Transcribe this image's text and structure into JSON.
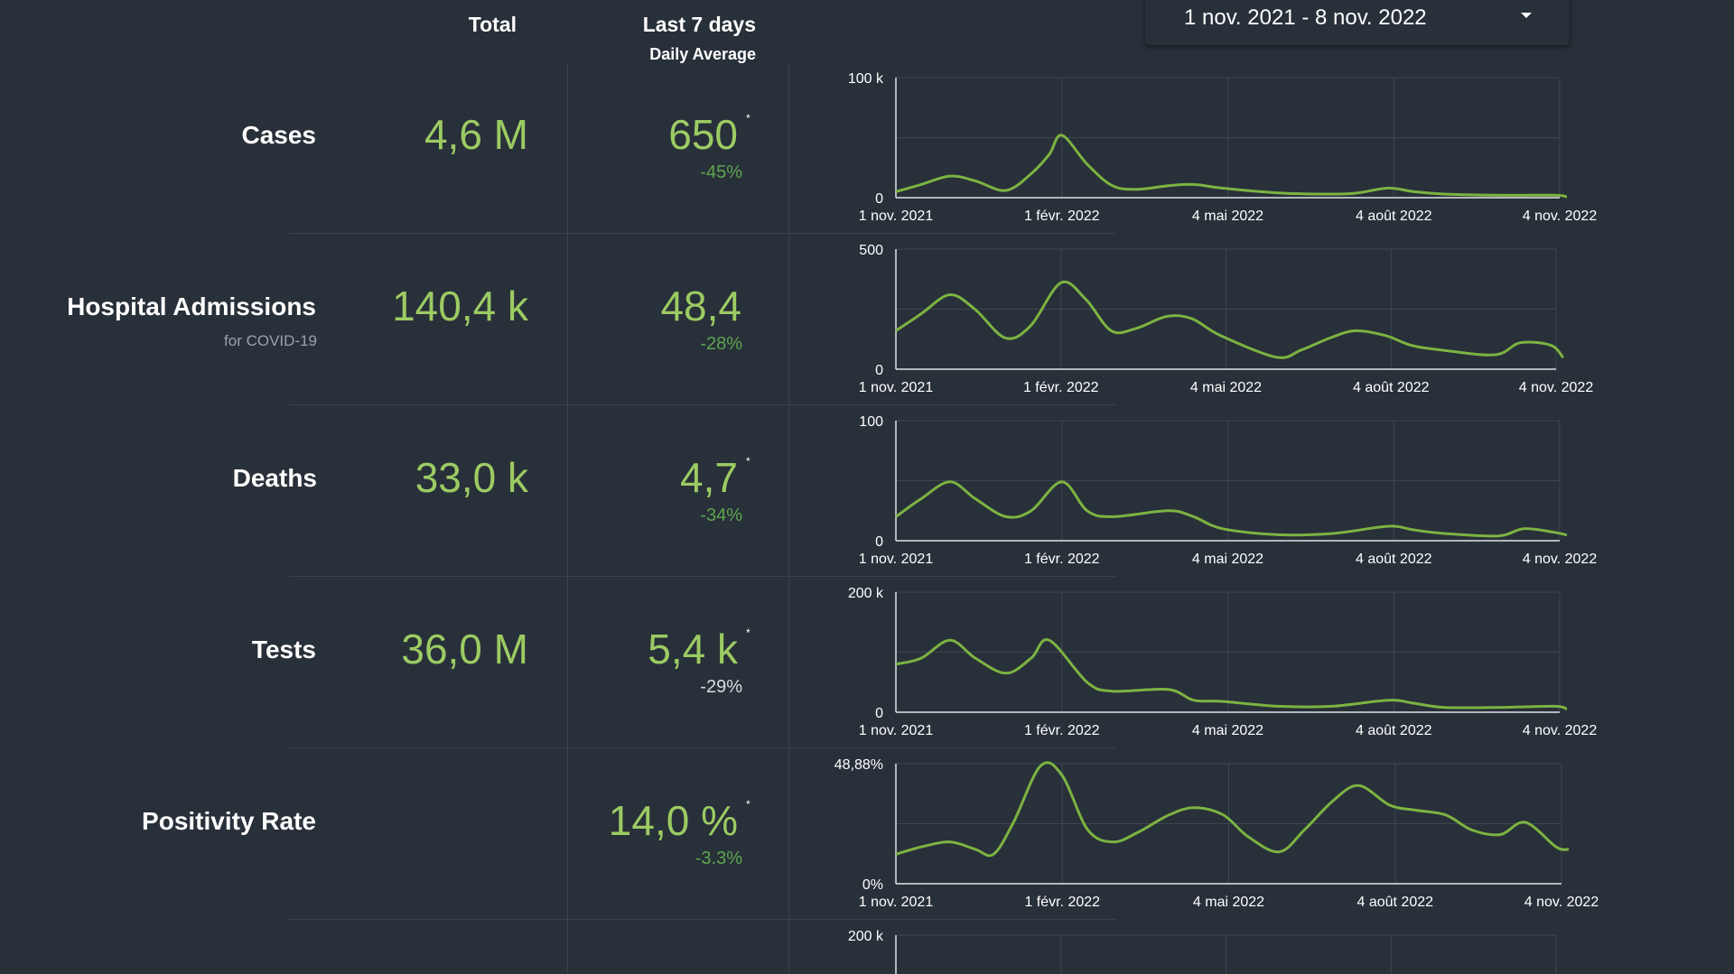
{
  "header": {
    "total_label": "Total",
    "last7_label": "Last 7 days",
    "daily_avg_label": "Daily Average"
  },
  "date_range": {
    "label": "1 nov. 2021 - 8 nov. 2022"
  },
  "colors": {
    "background": "#283039",
    "value_green": "#9ccb63",
    "change_green": "#5ea54f",
    "line": "#7cb342"
  },
  "metrics": [
    {
      "name": "Cases",
      "sub": "",
      "total": "4,6 M",
      "avg": "650",
      "star": "*",
      "change": "-45%"
    },
    {
      "name": "Hospital Admissions",
      "sub": "for COVID-19",
      "total": "140,4 k",
      "avg": "48,4",
      "star": "",
      "change": "-28%"
    },
    {
      "name": "Deaths",
      "sub": "",
      "total": "33,0 k",
      "avg": "4,7",
      "star": "*",
      "change": "-34%"
    },
    {
      "name": "Tests",
      "sub": "",
      "total": "36,0 M",
      "avg": "5,4 k",
      "star": "*",
      "change": "-29%"
    },
    {
      "name": "Positivity Rate",
      "sub": "",
      "total": "",
      "avg": "14,0 %",
      "star": "*",
      "change": "-3.3%"
    }
  ],
  "chart_data": [
    {
      "type": "line",
      "name": "Cases",
      "ylim": [
        0,
        100000
      ],
      "ytick_labels": [
        "0",
        "100 k"
      ],
      "xtick_labels": [
        "1 nov. 2021",
        "1 févr. 2022",
        "4 mai 2022",
        "4 août 2022",
        "4 nov. 2022"
      ],
      "x": [
        "2021-11-01",
        "2021-11-15",
        "2021-12-01",
        "2021-12-15",
        "2022-01-01",
        "2022-01-15",
        "2022-01-25",
        "2022-02-01",
        "2022-02-15",
        "2022-03-01",
        "2022-03-15",
        "2022-04-01",
        "2022-04-15",
        "2022-05-01",
        "2022-06-01",
        "2022-07-01",
        "2022-07-15",
        "2022-08-01",
        "2022-08-15",
        "2022-09-01",
        "2022-10-01",
        "2022-11-01",
        "2022-11-08"
      ],
      "y": [
        5000,
        11000,
        18000,
        14000,
        6000,
        20000,
        36000,
        52000,
        28000,
        10000,
        7000,
        10000,
        11000,
        8000,
        4000,
        3000,
        4000,
        8000,
        5000,
        3000,
        2000,
        2000,
        650
      ]
    },
    {
      "type": "line",
      "name": "Hospital Admissions",
      "ylim": [
        0,
        500
      ],
      "ytick_labels": [
        "0",
        "500"
      ],
      "xtick_labels": [
        "1 nov. 2021",
        "1 févr. 2022",
        "4 mai 2022",
        "4 août 2022",
        "4 nov. 2022"
      ],
      "x": [
        "2021-11-01",
        "2021-11-15",
        "2021-12-01",
        "2021-12-15",
        "2022-01-01",
        "2022-01-15",
        "2022-02-01",
        "2022-02-15",
        "2022-03-01",
        "2022-03-15",
        "2022-04-01",
        "2022-04-15",
        "2022-05-01",
        "2022-06-01",
        "2022-06-15",
        "2022-07-01",
        "2022-07-15",
        "2022-08-01",
        "2022-08-15",
        "2022-09-01",
        "2022-10-01",
        "2022-10-15",
        "2022-11-01",
        "2022-11-08"
      ],
      "y": [
        160,
        230,
        310,
        250,
        130,
        180,
        360,
        290,
        160,
        170,
        220,
        210,
        140,
        50,
        80,
        130,
        160,
        140,
        100,
        80,
        60,
        110,
        100,
        48
      ]
    },
    {
      "type": "line",
      "name": "Deaths",
      "ylim": [
        0,
        100
      ],
      "ytick_labels": [
        "0",
        "100"
      ],
      "xtick_labels": [
        "1 nov. 2021",
        "1 févr. 2022",
        "4 mai 2022",
        "4 août 2022",
        "4 nov. 2022"
      ],
      "x": [
        "2021-11-01",
        "2021-11-15",
        "2021-12-01",
        "2021-12-15",
        "2022-01-01",
        "2022-01-15",
        "2022-02-01",
        "2022-02-15",
        "2022-03-01",
        "2022-04-01",
        "2022-04-15",
        "2022-05-01",
        "2022-06-01",
        "2022-07-01",
        "2022-08-01",
        "2022-08-15",
        "2022-09-01",
        "2022-10-01",
        "2022-10-15",
        "2022-11-01",
        "2022-11-08"
      ],
      "y": [
        20,
        35,
        49,
        35,
        20,
        25,
        49,
        25,
        20,
        25,
        20,
        10,
        5,
        6,
        12,
        9,
        6,
        4,
        10,
        7,
        4.7
      ]
    },
    {
      "type": "line",
      "name": "Tests",
      "ylim": [
        0,
        200000
      ],
      "ytick_labels": [
        "0",
        "200 k"
      ],
      "xtick_labels": [
        "1 nov. 2021",
        "1 févr. 2022",
        "4 mai 2022",
        "4 août 2022",
        "4 nov. 2022"
      ],
      "x": [
        "2021-11-01",
        "2021-11-15",
        "2021-12-01",
        "2021-12-15",
        "2022-01-01",
        "2022-01-15",
        "2022-01-25",
        "2022-02-15",
        "2022-03-01",
        "2022-04-01",
        "2022-04-15",
        "2022-05-01",
        "2022-06-01",
        "2022-07-01",
        "2022-08-01",
        "2022-08-15",
        "2022-09-01",
        "2022-10-01",
        "2022-11-01",
        "2022-11-08"
      ],
      "y": [
        80000,
        90000,
        120000,
        90000,
        65000,
        90000,
        120000,
        50000,
        35000,
        38000,
        20000,
        18000,
        10000,
        10000,
        20000,
        15000,
        8000,
        8000,
        10000,
        5400
      ]
    },
    {
      "type": "line",
      "name": "Positivity Rate",
      "ylim": [
        0,
        48.88
      ],
      "ytick_labels": [
        "0%",
        "48,88%"
      ],
      "xtick_labels": [
        "1 nov. 2021",
        "1 févr. 2022",
        "4 mai 2022",
        "4 août 2022",
        "4 nov. 2022"
      ],
      "x": [
        "2021-11-01",
        "2021-11-15",
        "2021-12-01",
        "2021-12-15",
        "2021-12-25",
        "2022-01-05",
        "2022-01-20",
        "2022-02-01",
        "2022-02-15",
        "2022-03-01",
        "2022-03-15",
        "2022-04-01",
        "2022-04-15",
        "2022-05-01",
        "2022-05-15",
        "2022-06-01",
        "2022-06-15",
        "2022-07-01",
        "2022-07-15",
        "2022-08-01",
        "2022-08-15",
        "2022-09-01",
        "2022-09-15",
        "2022-10-01",
        "2022-10-15",
        "2022-11-01",
        "2022-11-08"
      ],
      "y": [
        12,
        15,
        17,
        14,
        12,
        25,
        48,
        44,
        22,
        17,
        21,
        28,
        31,
        28,
        19,
        13,
        22,
        34,
        40,
        32,
        30,
        28,
        22,
        20,
        25,
        15,
        14
      ]
    },
    {
      "type": "line",
      "ylim": [
        0,
        200000
      ],
      "ytick_labels": [
        "200 k"
      ],
      "xtick_labels": [],
      "x": [],
      "y": []
    }
  ]
}
